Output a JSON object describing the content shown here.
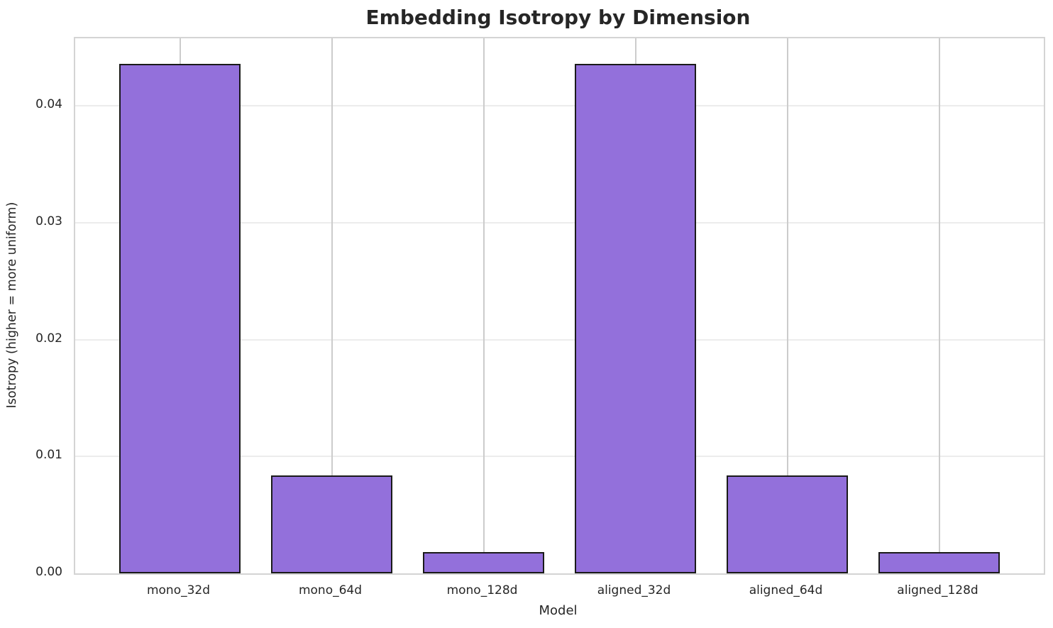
{
  "chart": {
    "title": "Embedding Isotropy by Dimension",
    "xlabel": "Model",
    "ylabel": "Isotropy (higher = more uniform)"
  },
  "chart_data": {
    "type": "bar",
    "title": "Embedding Isotropy by Dimension",
    "xlabel": "Model",
    "ylabel": "Isotropy (higher = more uniform)",
    "categories": [
      "mono_32d",
      "mono_64d",
      "mono_128d",
      "aligned_32d",
      "aligned_64d",
      "aligned_128d"
    ],
    "values": [
      0.0436,
      0.0084,
      0.0018,
      0.0436,
      0.0084,
      0.0018
    ],
    "ylim": [
      0,
      0.0458
    ],
    "ytick_values": [
      0.0,
      0.01,
      0.02,
      0.03,
      0.04
    ],
    "ytick_labels": [
      "0.00",
      "0.01",
      "0.02",
      "0.03",
      "0.04"
    ],
    "grid": true,
    "legend": "none",
    "bar_color": "#9370DB",
    "bar_edge_color": "#1a1a1a",
    "grid_color_h": "#ececec",
    "grid_color_v": "#cccccc",
    "spine_color": "#d4d4d4",
    "text_color": "#262626"
  }
}
